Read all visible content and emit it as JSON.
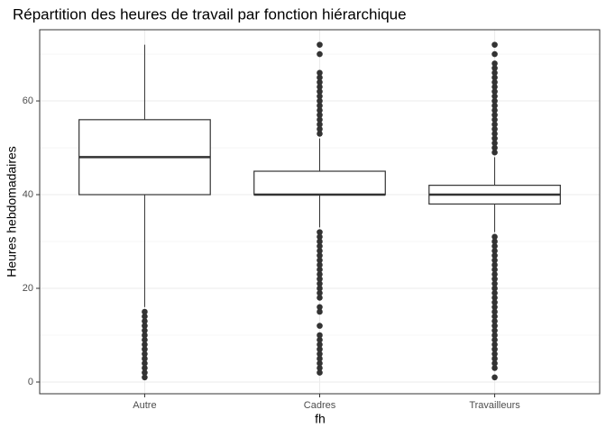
{
  "chart_data": {
    "type": "boxplot",
    "title": "Répartition des heures de travail par fonction hiérarchique",
    "x_label": "fh",
    "y_label": "Heures hebdomadaires",
    "categories": [
      "Autre",
      "Cadres",
      "Travailleurs"
    ],
    "boxes": [
      {
        "whisker_low": 16,
        "q1": 40,
        "median": 48,
        "q3": 56,
        "whisker_high": 72,
        "outliers": [
          1,
          2,
          3,
          4,
          5,
          6,
          7,
          8,
          9,
          10,
          11,
          12,
          13,
          14,
          15
        ]
      },
      {
        "whisker_low": 33,
        "q1": 40,
        "median": 40,
        "q3": 45,
        "whisker_high": 52,
        "outliers": [
          2,
          3,
          4,
          5,
          6,
          7,
          8,
          9,
          10,
          12,
          15,
          16,
          18,
          19,
          20,
          21,
          22,
          23,
          24,
          25,
          26,
          27,
          28,
          29,
          30,
          31,
          32,
          53,
          54,
          55,
          56,
          57,
          58,
          59,
          60,
          61,
          62,
          63,
          64,
          65,
          66,
          70,
          72
        ]
      },
      {
        "whisker_low": 32,
        "q1": 38,
        "median": 40,
        "q3": 42,
        "whisker_high": 48,
        "outliers": [
          1,
          3,
          4,
          5,
          6,
          7,
          8,
          9,
          10,
          11,
          12,
          13,
          14,
          15,
          16,
          17,
          18,
          19,
          20,
          21,
          22,
          23,
          24,
          25,
          26,
          27,
          28,
          29,
          30,
          31,
          49,
          50,
          51,
          52,
          53,
          54,
          55,
          56,
          57,
          58,
          59,
          60,
          61,
          62,
          63,
          64,
          65,
          66,
          67,
          68,
          70,
          72
        ]
      }
    ],
    "ylim": [
      -2.5,
      75.2
    ],
    "yticks": [
      0,
      20,
      40,
      60
    ],
    "minor_yticks": [
      10,
      30,
      50,
      70
    ],
    "grid": true
  }
}
